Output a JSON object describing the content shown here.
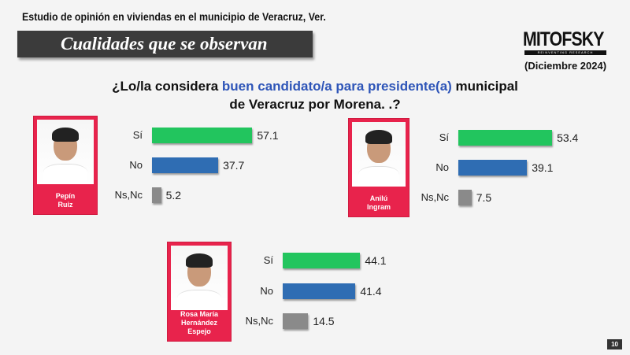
{
  "header": {
    "subtitle": "Estudio de opinión en viviendas en el municipio de Veracruz, Ver.",
    "banner": "Cualidades que se observan",
    "logo": "MITOFSKY",
    "logo_tagline": "REINVENTING RESEARCH",
    "date": "(Diciembre 2024)"
  },
  "question": {
    "part1": "¿Lo/la considera ",
    "highlight": "buen candidato/a para presidente(a)",
    "part2": " municipal",
    "line2": "de Veracruz por Morena. .?"
  },
  "page_number": "10",
  "chart_data": [
    {
      "type": "bar",
      "orientation": "horizontal",
      "candidate": "Pepín Ruiz",
      "name_lines": [
        "Pepín",
        "Ruiz"
      ],
      "categories": [
        "Sí",
        "No",
        "Ns,Nc"
      ],
      "values": [
        57.1,
        37.7,
        5.2
      ],
      "labels": [
        "57.1",
        "37.7",
        "5.2"
      ]
    },
    {
      "type": "bar",
      "orientation": "horizontal",
      "candidate": "Anilú Ingram",
      "name_lines": [
        "Anilú",
        "Ingram"
      ],
      "categories": [
        "Sí",
        "No",
        "Ns,Nc"
      ],
      "values": [
        53.4,
        39.1,
        7.5
      ],
      "labels": [
        "53.4",
        "39.1",
        "7.5"
      ]
    },
    {
      "type": "bar",
      "orientation": "horizontal",
      "candidate": "Rosa María Hernández Espejo",
      "name_lines": [
        "Rosa María",
        "Hernández",
        "Espejo"
      ],
      "categories": [
        "Sí",
        "No",
        "Ns,Nc"
      ],
      "values": [
        44.1,
        41.4,
        14.5
      ],
      "labels": [
        "44.1",
        "41.4",
        "14.5"
      ]
    }
  ],
  "colors": {
    "si": "#22c55e",
    "no": "#2f6db3",
    "nsnc": "#8a8a8a",
    "card": "#e8234c"
  }
}
